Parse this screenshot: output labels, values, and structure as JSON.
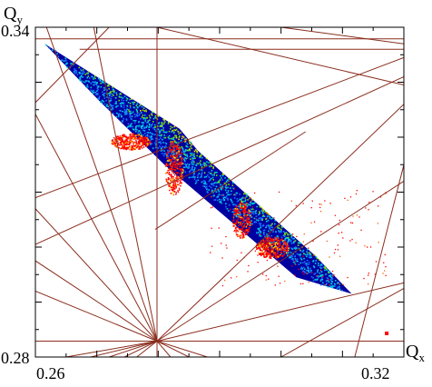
{
  "chart_data": {
    "type": "scatter",
    "title": "",
    "axes": {
      "x": {
        "label": "Q",
        "label_subscript": "x",
        "range": [
          0.26,
          0.32
        ],
        "tick_labels": [
          "0.26",
          "0.32"
        ]
      },
      "y": {
        "label": "Q",
        "label_subscript": "y",
        "range": [
          0.28,
          0.34
        ],
        "tick_labels": [
          "0.34",
          "0.28"
        ]
      }
    },
    "grid": false,
    "legend": "none",
    "colors": {
      "resonance_lines": "#8b2e1f",
      "frame": "#000000",
      "density_scale": [
        "#0000a0",
        "#1e6fff",
        "#00cfe0",
        "#7fe000",
        "#ffe000",
        "#ff6000",
        "#ff0000"
      ]
    },
    "footprint_region": {
      "description_points_in_data_units": [
        [
          0.2615,
          0.337
        ],
        [
          0.2835,
          0.3215
        ],
        [
          0.2865,
          0.3175
        ],
        [
          0.3055,
          0.2985
        ],
        [
          0.3115,
          0.2915
        ],
        [
          0.3025,
          0.2945
        ],
        [
          0.281,
          0.315
        ],
        [
          0.2705,
          0.3265
        ]
      ]
    },
    "resonance_lines": [
      {
        "points": [
          [
            0.26,
            0.3379
          ],
          [
            0.32,
            0.3379
          ]
        ]
      },
      {
        "points": [
          [
            0.26,
            0.2829
          ],
          [
            0.32,
            0.2829
          ]
        ]
      },
      {
        "points": [
          [
            0.2798,
            0.28
          ],
          [
            0.2798,
            0.34
          ]
        ]
      },
      {
        "points": [
          [
            0.2672,
            0.336
          ],
          [
            0.32,
            0.336
          ]
        ]
      },
      {
        "points": [
          [
            0.26,
            0.3263
          ],
          [
            0.272,
            0.34
          ]
        ]
      },
      {
        "points": [
          [
            0.26,
            0.309
          ],
          [
            0.32,
            0.3345
          ]
        ]
      },
      {
        "points": [
          [
            0.26,
            0.3005
          ],
          [
            0.32,
            0.331
          ]
        ]
      },
      {
        "points": [
          [
            0.2695,
            0.34
          ],
          [
            0.2798,
            0.2829
          ]
        ]
      },
      {
        "points": [
          [
            0.2618,
            0.34
          ],
          [
            0.2798,
            0.2829
          ]
        ]
      },
      {
        "points": [
          [
            0.26,
            0.3242
          ],
          [
            0.2798,
            0.2829
          ]
        ]
      },
      {
        "points": [
          [
            0.26,
            0.307
          ],
          [
            0.2798,
            0.2829
          ]
        ]
      },
      {
        "points": [
          [
            0.26,
            0.2975
          ],
          [
            0.2798,
            0.2829
          ]
        ]
      },
      {
        "points": [
          [
            0.26,
            0.292
          ],
          [
            0.2798,
            0.2829
          ]
        ]
      },
      {
        "points": [
          [
            0.2798,
            0.2829
          ],
          [
            0.32,
            0.326
          ]
        ]
      },
      {
        "points": [
          [
            0.2798,
            0.2829
          ],
          [
            0.32,
            0.312
          ]
        ]
      },
      {
        "points": [
          [
            0.2798,
            0.2829
          ],
          [
            0.32,
            0.2935
          ]
        ]
      },
      {
        "points": [
          [
            0.2798,
            0.2829
          ],
          [
            0.2745,
            0.28
          ]
        ]
      },
      {
        "points": [
          [
            0.2798,
            0.2829
          ],
          [
            0.2765,
            0.28
          ]
        ]
      },
      {
        "points": [
          [
            0.2798,
            0.2829
          ],
          [
            0.282,
            0.28
          ]
        ]
      },
      {
        "points": [
          [
            0.2798,
            0.2829
          ],
          [
            0.285,
            0.28
          ]
        ]
      },
      {
        "points": [
          [
            0.2798,
            0.2829
          ],
          [
            0.288,
            0.28
          ]
        ]
      },
      {
        "points": [
          [
            0.2798,
            0.2829
          ],
          [
            0.272,
            0.28
          ]
        ]
      },
      {
        "points": [
          [
            0.2798,
            0.2829
          ],
          [
            0.269,
            0.28
          ]
        ]
      },
      {
        "points": [
          [
            0.2798,
            0.2829
          ],
          [
            0.265,
            0.28
          ]
        ]
      },
      {
        "points": [
          [
            0.2795,
            0.3032
          ],
          [
            0.304,
            0.321
          ]
        ]
      },
      {
        "points": [
          [
            0.3,
            0.34
          ],
          [
            0.32,
            0.337
          ]
        ]
      },
      {
        "points": [
          [
            0.2798,
            0.34
          ],
          [
            0.32,
            0.3295
          ]
        ]
      },
      {
        "points": [
          [
            0.312,
            0.28
          ],
          [
            0.32,
            0.315
          ]
        ]
      },
      {
        "points": [
          [
            0.3,
            0.28
          ],
          [
            0.32,
            0.2925
          ]
        ]
      }
    ]
  }
}
